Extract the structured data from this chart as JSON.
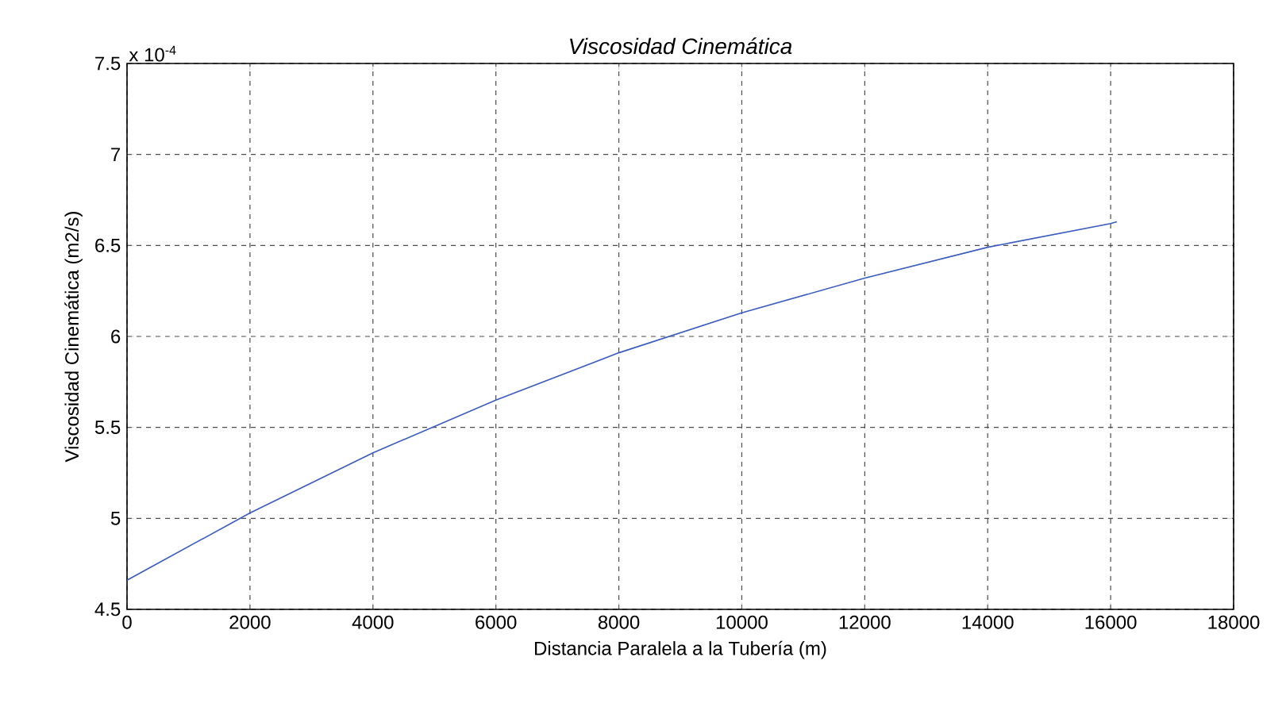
{
  "chart_data": {
    "type": "line",
    "title": "*Viscosidad Cinemática*",
    "xlabel": "Distancia Paralela a la Tubería (m)",
    "ylabel": "Viscosidad Cinemática (m2/s)",
    "annotations": [
      "x 10$^{-4}$"
    ],
    "x": [
      0,
      2000,
      4000,
      6000,
      8000,
      10000,
      12000,
      14000,
      16000,
      16100
    ],
    "series": [
      {
        "color": "#3a5bbf",
        "values": [
          4.66,
          5.03,
          5.36,
          5.65,
          5.91,
          6.13,
          6.32,
          6.49,
          6.62,
          6.63
        ]
      }
    ],
    "xlim": [
      0,
      18000
    ],
    "xticks": [
      0,
      2000,
      4000,
      6000,
      8000,
      10000,
      12000,
      14000,
      16000,
      18000
    ],
    "ylim": [
      4.5,
      7.5
    ],
    "yticks": [
      4.5,
      5,
      5.5,
      6,
      6.5,
      7,
      7.5
    ],
    "grid": true,
    "marker": "none",
    "line_style": "solid"
  }
}
